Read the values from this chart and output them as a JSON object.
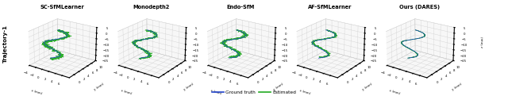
{
  "titles": [
    "SC-SfMLearner",
    "Monodepth2",
    "Endo-SfM",
    "AF-SfMLearner",
    "Ours (DARES)"
  ],
  "y_label": "Trajectory-1",
  "legend_items": [
    "Ground truth",
    "Estimated"
  ],
  "legend_colors": [
    "#2244cc",
    "#22aa22"
  ],
  "background_color": "#ffffff",
  "figure_size": [
    6.4,
    1.26
  ],
  "dpi": 100,
  "elev": 22,
  "azim": -55,
  "xlim": [
    -4,
    8
  ],
  "ylim": [
    -2,
    10
  ],
  "zlim": [
    -25,
    5
  ],
  "xticks": [
    -4,
    -2,
    0,
    2,
    4,
    6
  ],
  "yticks": [
    0,
    2,
    4,
    6,
    8,
    10
  ],
  "zticks": [
    5,
    0,
    -5,
    -10,
    -15,
    -20,
    -25
  ]
}
